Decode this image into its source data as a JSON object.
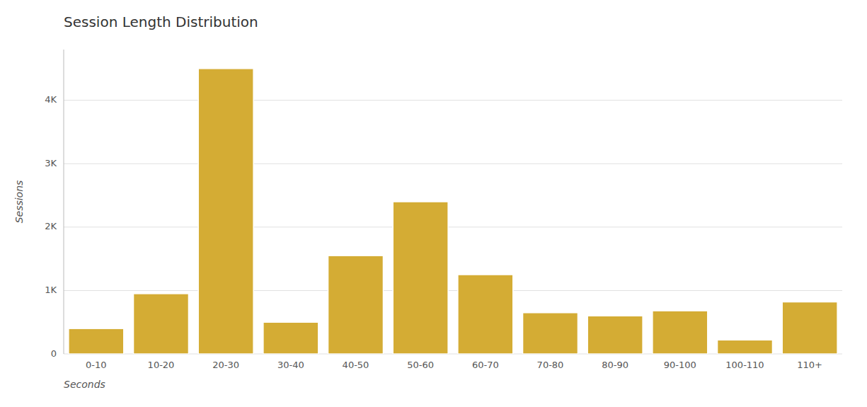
{
  "chart_data": {
    "type": "bar",
    "title": "Session Length Distribution",
    "categories": [
      "0-10",
      "10-20",
      "20-30",
      "30-40",
      "40-50",
      "50-60",
      "60-70",
      "70-80",
      "80-90",
      "90-100",
      "100-110",
      "110+"
    ],
    "values": [
      400,
      950,
      4500,
      500,
      1550,
      2400,
      1250,
      650,
      600,
      680,
      220,
      820
    ],
    "color": "#D4AC34",
    "xlabel": "Seconds",
    "ylabel": "Sessions",
    "ylim": [
      0,
      4800
    ],
    "yticks": [
      0,
      {
        "value": 1000,
        "label": "1K"
      },
      {
        "value": 2000,
        "label": "2K"
      },
      {
        "value": 3000,
        "label": "3K"
      },
      {
        "value": 4000,
        "label": "4K"
      }
    ],
    "grid": true
  }
}
